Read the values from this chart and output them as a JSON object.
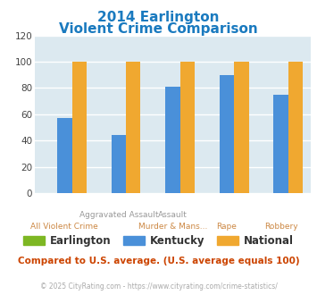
{
  "title_line1": "2014 Earlington",
  "title_line2": "Violent Crime Comparison",
  "title_color": "#1a7abf",
  "categories": [
    "All Violent Crime",
    "Aggravated Assault",
    "Murder & Mans...",
    "Rape",
    "Robbery"
  ],
  "top_labels": [
    "",
    "Aggravated Assault",
    "Assault",
    "",
    ""
  ],
  "bottom_labels": [
    "All Violent Crime",
    "",
    "Murder & Mans...",
    "Rape",
    "Robbery"
  ],
  "series": {
    "Earlington": {
      "values": [
        0,
        0,
        0,
        0,
        0
      ],
      "color": "#7db723"
    },
    "Kentucky": {
      "values": [
        57,
        44,
        81,
        90,
        75
      ],
      "color": "#4a90d9"
    },
    "National": {
      "values": [
        100,
        100,
        100,
        100,
        100
      ],
      "color": "#f0a830"
    }
  },
  "ylim": [
    0,
    120
  ],
  "yticks": [
    0,
    20,
    40,
    60,
    80,
    100,
    120
  ],
  "plot_bg_color": "#dce9f0",
  "footer_text": "Compared to U.S. average. (U.S. average equals 100)",
  "footer_color": "#cc4400",
  "copyright_text": "© 2025 CityRating.com - https://www.cityrating.com/crime-statistics/",
  "copyright_color": "#aaaaaa",
  "bar_width": 0.27
}
